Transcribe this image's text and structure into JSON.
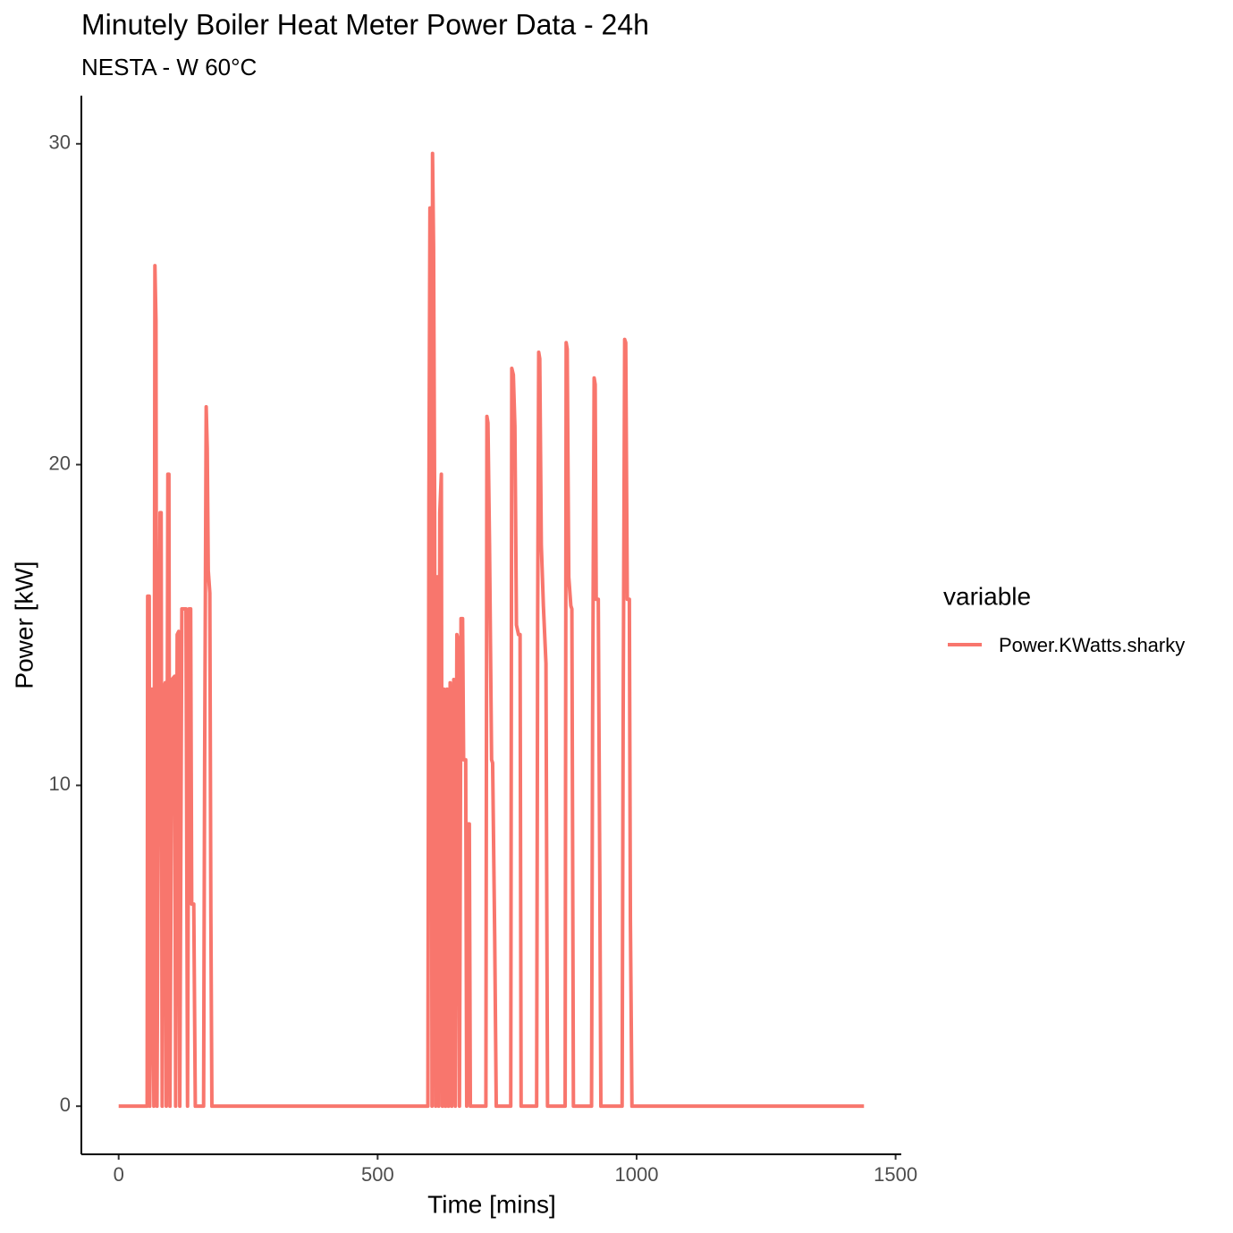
{
  "chart_data": {
    "type": "line",
    "title": "Minutely Boiler Heat Meter Power Data - 24h",
    "subtitle": "NESTA - W 60°C",
    "x_label": "Time [mins]",
    "y_label": "Power [kW]",
    "legend_title": "variable",
    "legend_position": "right",
    "grid": false,
    "xlim": [
      -72,
      1511
    ],
    "ylim": [
      -1.5,
      31.5
    ],
    "xticks": [
      0,
      500,
      1000,
      1500
    ],
    "yticks": [
      0,
      10,
      20,
      30
    ],
    "x": [
      0,
      55,
      56,
      59,
      60,
      62,
      64,
      68,
      70,
      72,
      74,
      77,
      80,
      82,
      84,
      87,
      90,
      92,
      95,
      97,
      99,
      103,
      108,
      110,
      113,
      116,
      118,
      122,
      130,
      133,
      136,
      139,
      141,
      145,
      148,
      164,
      166,
      169,
      171,
      173,
      176,
      178,
      180,
      597,
      599,
      601,
      603,
      605,
      606,
      608,
      610,
      612,
      615,
      618,
      620,
      623,
      625,
      628,
      631,
      634,
      637,
      640,
      643,
      647,
      650,
      653,
      656,
      658,
      661,
      664,
      666,
      670,
      672,
      674,
      677,
      679,
      709,
      711,
      713,
      716,
      720,
      722,
      726,
      729,
      757,
      759,
      762,
      765,
      768,
      772,
      775,
      777,
      807,
      809,
      811,
      813,
      816,
      820,
      825,
      828,
      862,
      864,
      866,
      869,
      873,
      875,
      878,
      913,
      915,
      918,
      920,
      922,
      926,
      929,
      931,
      972,
      974,
      977,
      979,
      982,
      986,
      988,
      991,
      1439
    ],
    "series": [
      {
        "name": "Power.KWatts.sharky",
        "color": "#F8766D",
        "values": [
          0,
          0,
          15.9,
          15.9,
          0,
          3.8,
          13,
          0,
          26.2,
          24.5,
          0,
          11,
          18.5,
          18.5,
          0,
          13,
          13.2,
          0,
          19.7,
          19.7,
          0,
          13.3,
          13.4,
          0,
          14.7,
          14.8,
          0,
          15.5,
          15.5,
          0,
          15.5,
          15.5,
          6.3,
          6.3,
          0,
          0,
          10.7,
          21.8,
          20.5,
          16.7,
          16,
          6,
          0,
          0,
          18.8,
          28,
          28,
          0,
          29.7,
          26.8,
          19,
          0,
          16.5,
          0,
          18.5,
          19.7,
          0,
          13,
          0,
          13,
          0,
          13.2,
          0,
          13.3,
          0,
          14.7,
          14.5,
          0,
          15.2,
          15.2,
          10.8,
          10.8,
          0,
          8.8,
          8.8,
          0,
          0,
          21.5,
          21.3,
          17.5,
          10.8,
          10.7,
          5.3,
          0,
          0,
          23,
          22.8,
          21.2,
          15,
          14.7,
          14.7,
          0,
          0,
          15.3,
          23.5,
          23.3,
          17.5,
          15.6,
          13.8,
          0,
          0,
          23.8,
          23.6,
          16.5,
          15.6,
          15.5,
          0,
          0,
          12,
          22.7,
          22.5,
          15.8,
          15.8,
          7,
          0,
          0,
          12,
          23.9,
          23.8,
          15.8,
          15.8,
          5.8,
          0,
          0
        ]
      }
    ]
  }
}
